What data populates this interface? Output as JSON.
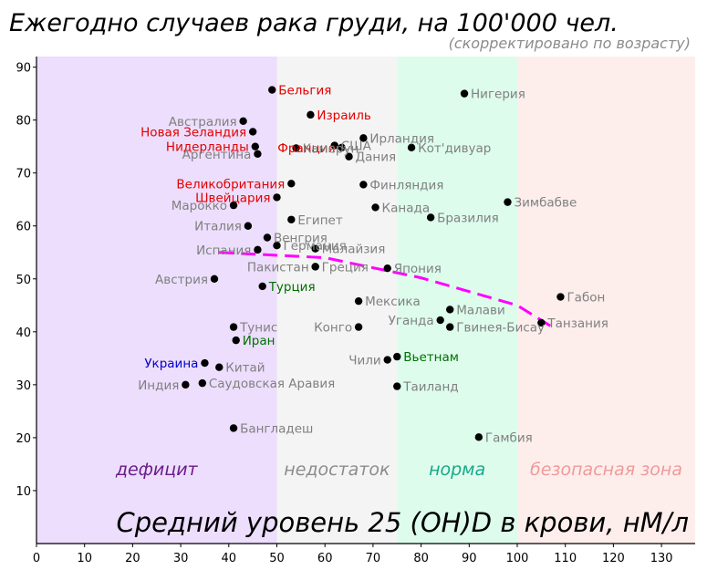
{
  "title": "Ежегодно случаев рака груди, на 100'000 чел.",
  "subtitle": "(скорректировано по возрасту)",
  "chart_data": {
    "type": "scatter",
    "title": "Ежегодно случаев рака груди, на 100'000 чел.",
    "subtitle": "(скорректировано по возрасту)",
    "xlabel": "Средний уровень 25 (OH)D в крови, нМ/л",
    "ylabel": "",
    "xlim": [
      0,
      137
    ],
    "ylim": [
      0,
      92
    ],
    "xticks": [
      "0",
      "10",
      "20",
      "30",
      "40",
      "50",
      "60",
      "70",
      "80",
      "90",
      "100",
      "110",
      "120",
      "130"
    ],
    "yticks": [
      "10",
      "20",
      "30",
      "40",
      "50",
      "60",
      "70",
      "80",
      "90"
    ],
    "grid": false,
    "zones": [
      {
        "label": "дефицит",
        "from": 0,
        "to": 50,
        "color": "#ecdefc",
        "text_color": "#6a1b8a"
      },
      {
        "label": "недостаток",
        "from": 50,
        "to": 75,
        "color": "#f4f4f4",
        "text_color": "#8c8c8c"
      },
      {
        "label": "норма",
        "from": 75,
        "to": 100,
        "color": "#ddfcec",
        "text_color": "#1aa88a"
      },
      {
        "label": "безопасная зона",
        "from": 100,
        "to": 137,
        "color": "#fdeeec",
        "text_color": "#f09a9a"
      }
    ],
    "points": [
      {
        "name": "Бельгия",
        "x": 49,
        "y": 85.7,
        "color": "#e30000",
        "side": "right"
      },
      {
        "name": "Нигерия",
        "x": 89,
        "y": 85.0,
        "color": "#808080",
        "side": "right"
      },
      {
        "name": "Израиль",
        "x": 57,
        "y": 81.0,
        "color": "#e30000",
        "side": "right"
      },
      {
        "name": "Австралия",
        "x": 43,
        "y": 79.8,
        "color": "#808080",
        "side": "left"
      },
      {
        "name": "Новая Зеландия",
        "x": 45,
        "y": 77.8,
        "color": "#e30000",
        "side": "left"
      },
      {
        "name": "Франция",
        "x": 63.5,
        "y": 74.8,
        "color": "#e30000",
        "side": "left"
      },
      {
        "name": "Ирландия",
        "x": 68,
        "y": 76.6,
        "color": "#808080",
        "side": "right"
      },
      {
        "name": "Нидерланды",
        "x": 45.5,
        "y": 75.0,
        "color": "#e30000",
        "side": "left"
      },
      {
        "name": "Кот'дивуар",
        "x": 78,
        "y": 74.8,
        "color": "#808080",
        "side": "right"
      },
      {
        "name": "США",
        "x": 62,
        "y": 75.2,
        "color": "#808080",
        "side": "right"
      },
      {
        "name": "Аргентина",
        "x": 46,
        "y": 73.6,
        "color": "#808080",
        "side": "left"
      },
      {
        "name": "Камерун",
        "x": 54,
        "y": 74.7,
        "color": "#808080",
        "side": "right"
      },
      {
        "name": "Дания",
        "x": 65,
        "y": 73.1,
        "color": "#808080",
        "side": "right"
      },
      {
        "name": "Великобритания",
        "x": 53,
        "y": 68.0,
        "color": "#e30000",
        "side": "left"
      },
      {
        "name": "Финляндия",
        "x": 68,
        "y": 67.8,
        "color": "#808080",
        "side": "right"
      },
      {
        "name": "Швейцария",
        "x": 50,
        "y": 65.4,
        "color": "#e30000",
        "side": "left"
      },
      {
        "name": "Зимбабве",
        "x": 98,
        "y": 64.5,
        "color": "#808080",
        "side": "right"
      },
      {
        "name": "Марокко",
        "x": 41,
        "y": 63.9,
        "color": "#808080",
        "side": "left"
      },
      {
        "name": "Канада",
        "x": 70.5,
        "y": 63.5,
        "color": "#808080",
        "side": "right"
      },
      {
        "name": "Бразилия",
        "x": 82,
        "y": 61.6,
        "color": "#808080",
        "side": "right"
      },
      {
        "name": "Египет",
        "x": 53,
        "y": 61.2,
        "color": "#808080",
        "side": "right"
      },
      {
        "name": "Италия",
        "x": 44,
        "y": 60.0,
        "color": "#808080",
        "side": "left"
      },
      {
        "name": "Венгрия",
        "x": 48,
        "y": 57.8,
        "color": "#808080",
        "side": "right"
      },
      {
        "name": "Германия",
        "x": 50,
        "y": 56.3,
        "color": "#808080",
        "side": "right"
      },
      {
        "name": "Испания",
        "x": 46,
        "y": 55.5,
        "color": "#808080",
        "side": "left"
      },
      {
        "name": "Малайзия",
        "x": 58,
        "y": 55.7,
        "color": "#808080",
        "side": "right"
      },
      {
        "name": "Япония",
        "x": 73,
        "y": 52.0,
        "color": "#808080",
        "side": "right"
      },
      {
        "name": "Пакистан",
        "x": 58,
        "y": 52.3,
        "color": "#808080",
        "side": "left"
      },
      {
        "name": "Греция",
        "x": 58,
        "y": 52.3,
        "color": "#808080",
        "side": "right"
      },
      {
        "name": "Австрия",
        "x": 37,
        "y": 50.0,
        "color": "#808080",
        "side": "left"
      },
      {
        "name": "Турция",
        "x": 47,
        "y": 48.6,
        "color": "#007000",
        "side": "right"
      },
      {
        "name": "Габон",
        "x": 109,
        "y": 46.6,
        "color": "#808080",
        "side": "right"
      },
      {
        "name": "Мексика",
        "x": 67,
        "y": 45.8,
        "color": "#808080",
        "side": "right"
      },
      {
        "name": "Малави",
        "x": 86,
        "y": 44.2,
        "color": "#808080",
        "side": "right"
      },
      {
        "name": "Уганда",
        "x": 84,
        "y": 42.2,
        "color": "#808080",
        "side": "left"
      },
      {
        "name": "Танзания",
        "x": 105,
        "y": 41.7,
        "color": "#808080",
        "side": "right"
      },
      {
        "name": "Тунис",
        "x": 41,
        "y": 40.9,
        "color": "#808080",
        "side": "right"
      },
      {
        "name": "Конго",
        "x": 67,
        "y": 40.9,
        "color": "#808080",
        "side": "left"
      },
      {
        "name": "Гвинея-Бисау",
        "x": 86,
        "y": 40.9,
        "color": "#808080",
        "side": "right"
      },
      {
        "name": "Иран",
        "x": 41.5,
        "y": 38.4,
        "color": "#007000",
        "side": "right"
      },
      {
        "name": "Вьетнам",
        "x": 75,
        "y": 35.3,
        "color": "#007000",
        "side": "right"
      },
      {
        "name": "Чили",
        "x": 73,
        "y": 34.7,
        "color": "#808080",
        "side": "left"
      },
      {
        "name": "Украина",
        "x": 35,
        "y": 34.1,
        "color": "#0000cc",
        "side": "left"
      },
      {
        "name": "Китай",
        "x": 38,
        "y": 33.3,
        "color": "#808080",
        "side": "right"
      },
      {
        "name": "Индия",
        "x": 31,
        "y": 30.0,
        "color": "#808080",
        "side": "left"
      },
      {
        "name": "Саудовская Аравия",
        "x": 34.5,
        "y": 30.3,
        "color": "#808080",
        "side": "right"
      },
      {
        "name": "Таиланд",
        "x": 75,
        "y": 29.7,
        "color": "#808080",
        "side": "right"
      },
      {
        "name": "Бангладеш",
        "x": 41,
        "y": 21.8,
        "color": "#808080",
        "side": "right"
      },
      {
        "name": "Гамбия",
        "x": 92,
        "y": 20.1,
        "color": "#808080",
        "side": "right"
      }
    ],
    "trend_line": {
      "color": "#ff00ff",
      "style": "dashed",
      "x": [
        38,
        60,
        80,
        100,
        108
      ],
      "y": [
        55.0,
        54.0,
        50.2,
        45.0,
        40.5
      ]
    }
  }
}
